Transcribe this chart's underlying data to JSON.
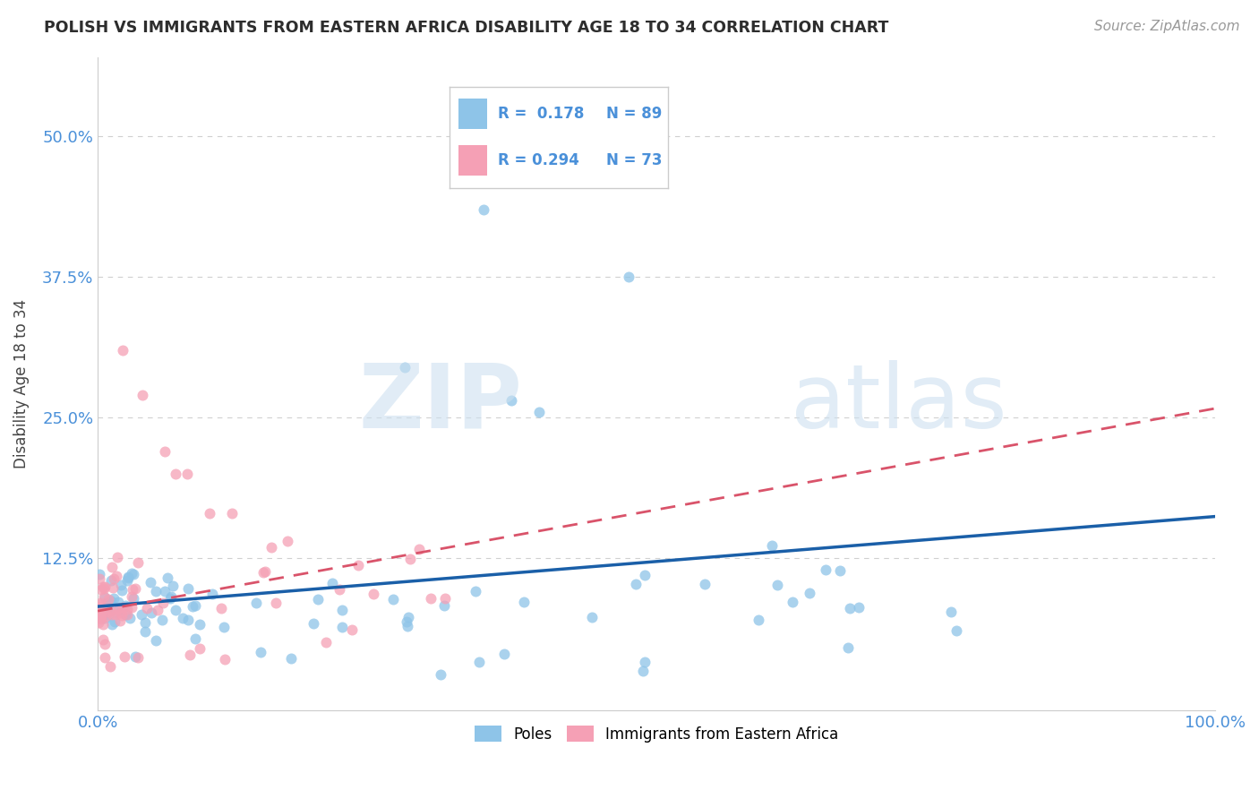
{
  "title": "POLISH VS IMMIGRANTS FROM EASTERN AFRICA DISABILITY AGE 18 TO 34 CORRELATION CHART",
  "source": "Source: ZipAtlas.com",
  "ylabel": "Disability Age 18 to 34",
  "xlim": [
    0,
    1.0
  ],
  "ylim": [
    -0.01,
    0.57
  ],
  "yticks": [
    0.0,
    0.125,
    0.25,
    0.375,
    0.5
  ],
  "ytick_labels": [
    "",
    "12.5%",
    "25.0%",
    "37.5%",
    "50.0%"
  ],
  "xtick_labels": [
    "0.0%",
    "100.0%"
  ],
  "xticks": [
    0.0,
    1.0
  ],
  "R_poles": 0.178,
  "N_poles": 89,
  "R_eastern": 0.294,
  "N_eastern": 73,
  "color_poles": "#8ec4e8",
  "color_eastern": "#f5a0b5",
  "trendline_poles_color": "#1a5fa8",
  "trendline_eastern_color": "#d9536a",
  "background_color": "#ffffff",
  "grid_color": "#d0d0d0",
  "title_color": "#2d2d2d",
  "axis_label_color": "#4a90d9",
  "poles_trend_start_y": 0.082,
  "poles_trend_end_y": 0.162,
  "eastern_trend_start_y": 0.078,
  "eastern_trend_end_y": 0.258
}
